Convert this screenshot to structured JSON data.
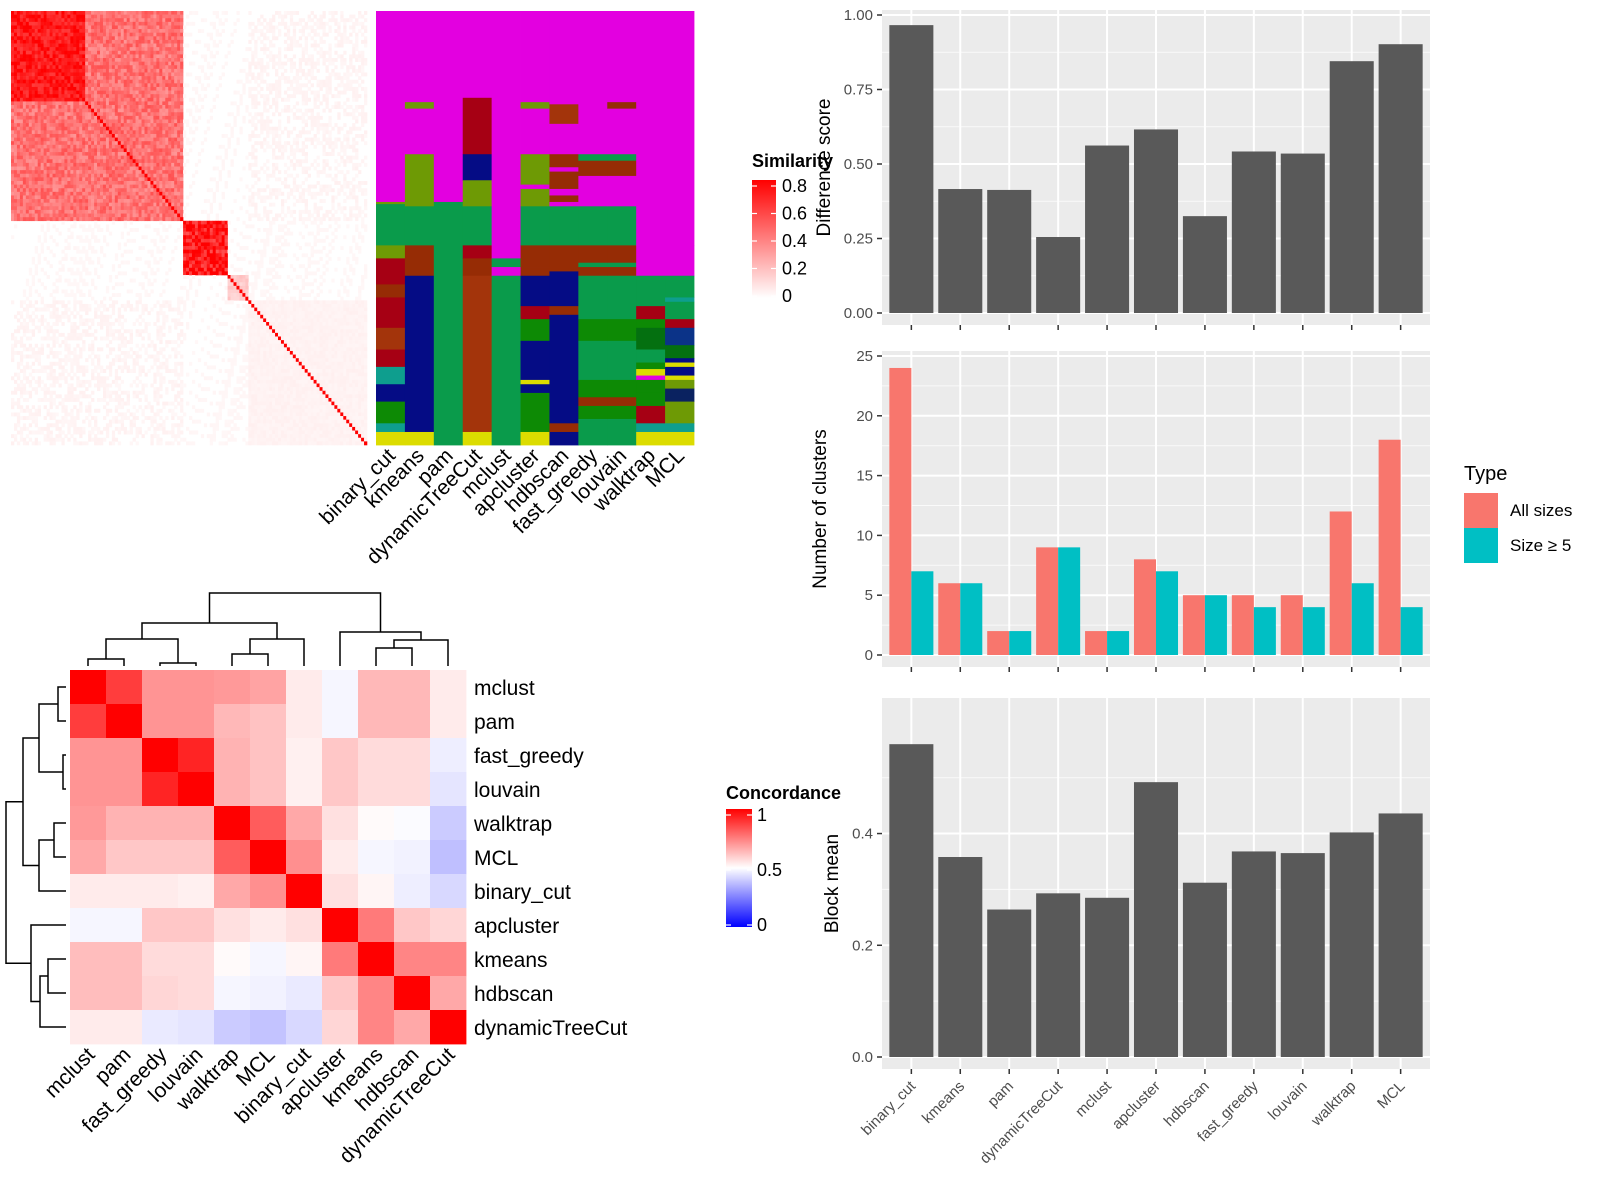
{
  "methods_bar_order": [
    "binary_cut",
    "kmeans",
    "pam",
    "dynamicTreeCut",
    "mclust",
    "apcluster",
    "hdbscan",
    "fast_greedy",
    "louvain",
    "walktrap",
    "MCL"
  ],
  "similarity_heatmap": {
    "legend_title": "Similarity",
    "legend_ticks": [
      "0.8",
      "0.6",
      "0.4",
      "0.2",
      "0"
    ],
    "color_low": "#ffffff",
    "color_high": "#ff0000"
  },
  "class_matrix": {
    "column_labels": [
      "binary_cut",
      "kmeans",
      "pam",
      "dynamicTreeCut",
      "mclust",
      "apcluster",
      "hdbscan",
      "fast_greedy",
      "louvain",
      "walktrap",
      "MCL"
    ]
  },
  "concordance_heatmap": {
    "legend_title": "Concordance",
    "legend_ticks": [
      "1",
      "0.5",
      "0"
    ],
    "color_low": "#0000ff",
    "color_mid": "#ffffff",
    "color_high": "#ff0000",
    "order": [
      "mclust",
      "pam",
      "fast_greedy",
      "louvain",
      "walktrap",
      "MCL",
      "binary_cut",
      "apcluster",
      "kmeans",
      "hdbscan",
      "dynamicTreeCut"
    ]
  },
  "chart_data": [
    {
      "type": "heatmap",
      "title": "",
      "legend_title": "Similarity",
      "scale_range": [
        0,
        0.8
      ],
      "description": "Consensus similarity matrix between items, ordered by clustering; strong red diagonal blocks"
    },
    {
      "type": "heatmap",
      "title": "",
      "columns": [
        "binary_cut",
        "kmeans",
        "pam",
        "dynamicTreeCut",
        "mclust",
        "apcluster",
        "hdbscan",
        "fast_greedy",
        "louvain",
        "walktrap",
        "MCL"
      ],
      "description": "Categorical cluster-label assignment per item for each method"
    },
    {
      "type": "heatmap",
      "title": "",
      "legend_title": "Concordance",
      "scale_range": [
        0,
        1
      ],
      "rows": [
        "mclust",
        "pam",
        "fast_greedy",
        "louvain",
        "walktrap",
        "MCL",
        "binary_cut",
        "apcluster",
        "kmeans",
        "hdbscan",
        "dynamicTreeCut"
      ],
      "columns": [
        "mclust",
        "pam",
        "fast_greedy",
        "louvain",
        "walktrap",
        "MCL",
        "binary_cut",
        "apcluster",
        "kmeans",
        "hdbscan",
        "dynamicTreeCut"
      ],
      "values": [
        [
          1.0,
          0.88,
          0.71,
          0.71,
          0.7,
          0.68,
          0.54,
          0.48,
          0.64,
          0.64,
          0.54
        ],
        [
          0.88,
          1.0,
          0.71,
          0.71,
          0.64,
          0.62,
          0.54,
          0.48,
          0.64,
          0.64,
          0.54
        ],
        [
          0.71,
          0.71,
          1.0,
          0.93,
          0.65,
          0.62,
          0.53,
          0.61,
          0.57,
          0.57,
          0.46
        ],
        [
          0.71,
          0.71,
          0.93,
          1.0,
          0.65,
          0.62,
          0.53,
          0.61,
          0.57,
          0.57,
          0.44
        ],
        [
          0.7,
          0.65,
          0.65,
          0.65,
          1.0,
          0.82,
          0.67,
          0.56,
          0.51,
          0.49,
          0.38
        ],
        [
          0.67,
          0.61,
          0.61,
          0.61,
          0.82,
          1.0,
          0.72,
          0.54,
          0.48,
          0.47,
          0.35
        ],
        [
          0.54,
          0.54,
          0.54,
          0.53,
          0.67,
          0.72,
          1.0,
          0.56,
          0.52,
          0.46,
          0.41
        ],
        [
          0.48,
          0.48,
          0.61,
          0.61,
          0.56,
          0.54,
          0.56,
          1.0,
          0.76,
          0.61,
          0.58
        ],
        [
          0.63,
          0.63,
          0.57,
          0.57,
          0.51,
          0.48,
          0.52,
          0.76,
          1.0,
          0.74,
          0.74
        ],
        [
          0.63,
          0.63,
          0.58,
          0.57,
          0.48,
          0.47,
          0.45,
          0.61,
          0.74,
          1.0,
          0.67
        ],
        [
          0.54,
          0.54,
          0.45,
          0.44,
          0.38,
          0.36,
          0.41,
          0.58,
          0.74,
          0.67,
          1.0
        ]
      ]
    },
    {
      "type": "bar",
      "title": "",
      "categories": [
        "binary_cut",
        "kmeans",
        "pam",
        "dynamicTreeCut",
        "mclust",
        "apcluster",
        "hdbscan",
        "fast_greedy",
        "louvain",
        "walktrap",
        "MCL"
      ],
      "values": [
        0.966,
        0.416,
        0.413,
        0.255,
        0.562,
        0.616,
        0.325,
        0.542,
        0.535,
        0.845,
        0.902
      ],
      "xlabel": "",
      "ylabel": "Difference score",
      "ylim": [
        0,
        1.0
      ],
      "yticks": [
        "0.00",
        "0.25",
        "0.50",
        "0.75",
        "1.00"
      ],
      "bar_color": "#595959",
      "grid": true
    },
    {
      "type": "bar",
      "title": "",
      "categories": [
        "binary_cut",
        "kmeans",
        "pam",
        "dynamicTreeCut",
        "mclust",
        "apcluster",
        "hdbscan",
        "fast_greedy",
        "louvain",
        "walktrap",
        "MCL"
      ],
      "series": [
        {
          "name": "All sizes",
          "color": "#F8766D",
          "values": [
            24,
            6,
            2,
            9,
            2,
            8,
            5,
            5,
            5,
            12,
            18
          ]
        },
        {
          "name": "Size ≥ 5",
          "color": "#00BFC4",
          "values": [
            7,
            6,
            2,
            9,
            2,
            7,
            5,
            4,
            4,
            6,
            4
          ]
        }
      ],
      "xlabel": "",
      "ylabel": "Number of clusters",
      "ylim": [
        0,
        25
      ],
      "yticks": [
        "0",
        "5",
        "10",
        "15",
        "20",
        "25"
      ],
      "legend_title": "Type",
      "legend_position": "right",
      "grid": true
    },
    {
      "type": "bar",
      "title": "",
      "categories": [
        "binary_cut",
        "kmeans",
        "pam",
        "dynamicTreeCut",
        "mclust",
        "apcluster",
        "hdbscan",
        "fast_greedy",
        "louvain",
        "walktrap",
        "MCL"
      ],
      "values": [
        0.56,
        0.358,
        0.264,
        0.293,
        0.285,
        0.492,
        0.312,
        0.368,
        0.365,
        0.402,
        0.436
      ],
      "xlabel": "",
      "ylabel": "Block mean",
      "ylim": [
        0,
        0.58
      ],
      "yticks": [
        "0.0",
        "0.2",
        "0.4"
      ],
      "bar_color": "#595959",
      "grid": true
    }
  ]
}
